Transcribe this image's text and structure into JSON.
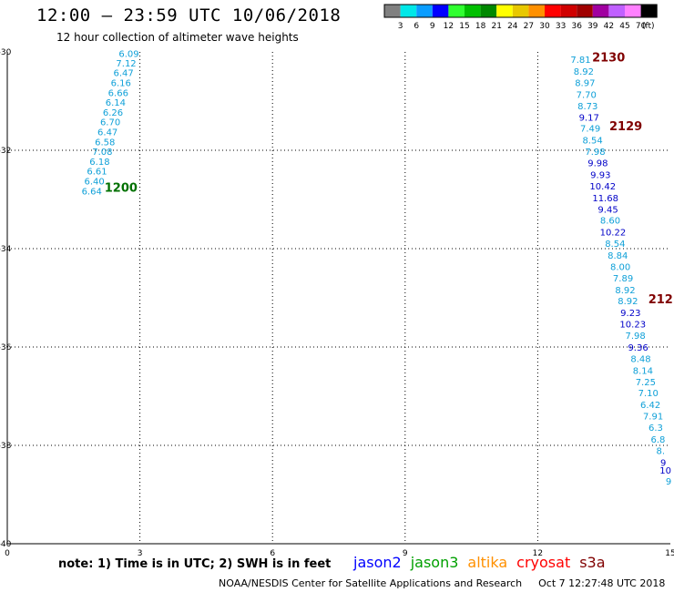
{
  "header": {
    "title": "12:00 — 23:59 UTC 10/06/2018",
    "subtitle": "12 hour collection of altimeter wave heights"
  },
  "colorbar": {
    "unit": "(ft)",
    "bins": [
      {
        "label": "3",
        "color": "#808080"
      },
      {
        "label": "6",
        "color": "#00e8e8"
      },
      {
        "label": "9",
        "color": "#0a9dff"
      },
      {
        "label": "12",
        "color": "#0000ff"
      },
      {
        "label": "15",
        "color": "#30ff30"
      },
      {
        "label": "18",
        "color": "#00c000"
      },
      {
        "label": "21",
        "color": "#008800"
      },
      {
        "label": "24",
        "color": "#ffff00"
      },
      {
        "label": "27",
        "color": "#e8c800"
      },
      {
        "label": "30",
        "color": "#ff9000"
      },
      {
        "label": "33",
        "color": "#ff0000"
      },
      {
        "label": "36",
        "color": "#d00000"
      },
      {
        "label": "39",
        "color": "#a00000"
      },
      {
        "label": "42",
        "color": "#a000a0"
      },
      {
        "label": "45",
        "color": "#c060ff"
      },
      {
        "label": "70",
        "color": "#ff80ff"
      },
      {
        "label": "",
        "color": "#000000"
      }
    ]
  },
  "chart_data": {
    "type": "scatter",
    "xlim": [
      0,
      15
    ],
    "ylim": [
      -40,
      -30
    ],
    "x_ticks": [
      {
        "v": 0,
        "label": "0"
      },
      {
        "v": 3,
        "label": "3"
      },
      {
        "v": 6,
        "label": "6"
      },
      {
        "v": 9,
        "label": "9"
      },
      {
        "v": 12,
        "label": "12"
      },
      {
        "v": 15,
        "label": "15"
      }
    ],
    "y_ticks": [
      {
        "v": -30,
        "label": "-30"
      },
      {
        "v": -32,
        "label": "-32"
      },
      {
        "v": -34,
        "label": "-34"
      },
      {
        "v": -36,
        "label": "-36"
      },
      {
        "v": -38,
        "label": "-38"
      },
      {
        "v": -40,
        "label": "-40"
      }
    ],
    "grid": true,
    "colors": {
      "light": "#0fa0d8",
      "dark": "#0000c8",
      "track_red": "#800000",
      "track_green": "#007000"
    },
    "points": [
      {
        "x": 2.75,
        "y": -30.03,
        "label": "6.09",
        "c": "light"
      },
      {
        "x": 2.69,
        "y": -30.22,
        "label": "7.12",
        "c": "light"
      },
      {
        "x": 2.63,
        "y": -30.42,
        "label": "6.47",
        "c": "light"
      },
      {
        "x": 2.57,
        "y": -30.62,
        "label": "6.16",
        "c": "light"
      },
      {
        "x": 2.51,
        "y": -30.82,
        "label": "6.66",
        "c": "light"
      },
      {
        "x": 2.45,
        "y": -31.02,
        "label": "6.14",
        "c": "light"
      },
      {
        "x": 2.39,
        "y": -31.22,
        "label": "6.26",
        "c": "light"
      },
      {
        "x": 2.33,
        "y": -31.42,
        "label": "6.70",
        "c": "light"
      },
      {
        "x": 2.27,
        "y": -31.62,
        "label": "6.47",
        "c": "light"
      },
      {
        "x": 2.21,
        "y": -31.82,
        "label": "6.58",
        "c": "light"
      },
      {
        "x": 2.15,
        "y": -32.02,
        "label": "7.08",
        "c": "light"
      },
      {
        "x": 2.09,
        "y": -32.22,
        "label": "6.18",
        "c": "light"
      },
      {
        "x": 2.03,
        "y": -32.42,
        "label": "6.61",
        "c": "light"
      },
      {
        "x": 1.97,
        "y": -32.62,
        "label": "6.40",
        "c": "light"
      },
      {
        "x": 1.91,
        "y": -32.82,
        "label": "6.64",
        "c": "light"
      },
      {
        "x": 12.97,
        "y": -30.15,
        "label": "7.81",
        "c": "light"
      },
      {
        "x": 13.04,
        "y": -30.39,
        "label": "8.92",
        "c": "light"
      },
      {
        "x": 13.07,
        "y": -30.62,
        "label": "8.97",
        "c": "light"
      },
      {
        "x": 13.1,
        "y": -30.86,
        "label": "7.70",
        "c": "light"
      },
      {
        "x": 13.13,
        "y": -31.09,
        "label": "8.73",
        "c": "light"
      },
      {
        "x": 13.16,
        "y": -31.32,
        "label": "9.17",
        "c": "dark"
      },
      {
        "x": 13.19,
        "y": -31.55,
        "label": "7.49",
        "c": "light"
      },
      {
        "x": 13.24,
        "y": -31.79,
        "label": "8.54",
        "c": "light"
      },
      {
        "x": 13.3,
        "y": -32.02,
        "label": "7.98",
        "c": "light"
      },
      {
        "x": 13.36,
        "y": -32.25,
        "label": "9.98",
        "c": "dark"
      },
      {
        "x": 13.42,
        "y": -32.49,
        "label": "9.93",
        "c": "dark"
      },
      {
        "x": 13.47,
        "y": -32.72,
        "label": "10.42",
        "c": "dark"
      },
      {
        "x": 13.53,
        "y": -32.96,
        "label": "11.68",
        "c": "dark"
      },
      {
        "x": 13.59,
        "y": -33.19,
        "label": "9.45",
        "c": "dark"
      },
      {
        "x": 13.64,
        "y": -33.42,
        "label": "8.60",
        "c": "light"
      },
      {
        "x": 13.7,
        "y": -33.66,
        "label": "10.22",
        "c": "dark"
      },
      {
        "x": 13.75,
        "y": -33.89,
        "label": "8.54",
        "c": "light"
      },
      {
        "x": 13.81,
        "y": -34.13,
        "label": "8.84",
        "c": "light"
      },
      {
        "x": 13.87,
        "y": -34.36,
        "label": "8.00",
        "c": "light"
      },
      {
        "x": 13.93,
        "y": -34.59,
        "label": "7.89",
        "c": "light"
      },
      {
        "x": 13.98,
        "y": -34.83,
        "label": "8.92",
        "c": "light"
      },
      {
        "x": 14.04,
        "y": -35.06,
        "label": "8.92",
        "c": "light"
      },
      {
        "x": 14.1,
        "y": -35.3,
        "label": "9.23",
        "c": "dark"
      },
      {
        "x": 14.15,
        "y": -35.53,
        "label": "10.23",
        "c": "dark"
      },
      {
        "x": 14.21,
        "y": -35.76,
        "label": "7.98",
        "c": "light"
      },
      {
        "x": 14.27,
        "y": -36.0,
        "label": "9.36",
        "c": "dark"
      },
      {
        "x": 14.33,
        "y": -36.23,
        "label": "8.48",
        "c": "light"
      },
      {
        "x": 14.38,
        "y": -36.47,
        "label": "8.14",
        "c": "light"
      },
      {
        "x": 14.44,
        "y": -36.7,
        "label": "7.25",
        "c": "light"
      },
      {
        "x": 14.5,
        "y": -36.93,
        "label": "7.10",
        "c": "light"
      },
      {
        "x": 14.55,
        "y": -37.17,
        "label": "6.42",
        "c": "light"
      },
      {
        "x": 14.61,
        "y": -37.4,
        "label": "7.91",
        "c": "light"
      },
      {
        "x": 14.67,
        "y": -37.63,
        "label": "6.3",
        "c": "light"
      },
      {
        "x": 14.72,
        "y": -37.87,
        "label": "6.8",
        "c": "light"
      },
      {
        "x": 14.78,
        "y": -38.1,
        "label": "8.",
        "c": "light"
      },
      {
        "x": 14.84,
        "y": -38.34,
        "label": "9",
        "c": "dark"
      },
      {
        "x": 14.89,
        "y": -38.5,
        "label": "10",
        "c": "dark"
      },
      {
        "x": 14.96,
        "y": -38.72,
        "label": "9",
        "c": "light"
      }
    ],
    "track_labels": [
      {
        "x": 2.2,
        "y": -32.75,
        "label": "1200",
        "c": "track_green"
      },
      {
        "x": 13.23,
        "y": -30.1,
        "label": "2130",
        "c": "track_red"
      },
      {
        "x": 13.62,
        "y": -31.5,
        "label": "2129",
        "c": "track_red"
      },
      {
        "x": 14.5,
        "y": -35.02,
        "label": "212",
        "c": "track_red"
      }
    ]
  },
  "footer": {
    "note": "note: 1) Time is in UTC; 2) SWH is in feet",
    "legend": [
      {
        "name": "jason2",
        "color": "#0000ff"
      },
      {
        "name": "jason3",
        "color": "#00a000"
      },
      {
        "name": "altika",
        "color": "#ff9000"
      },
      {
        "name": "cryosat",
        "color": "#ff0000"
      },
      {
        "name": "s3a",
        "color": "#800000"
      }
    ],
    "credit": "NOAA/NESDIS Center for Satellite Applications and Research",
    "timestamp": "Oct  7 12:27:48 UTC 2018"
  }
}
